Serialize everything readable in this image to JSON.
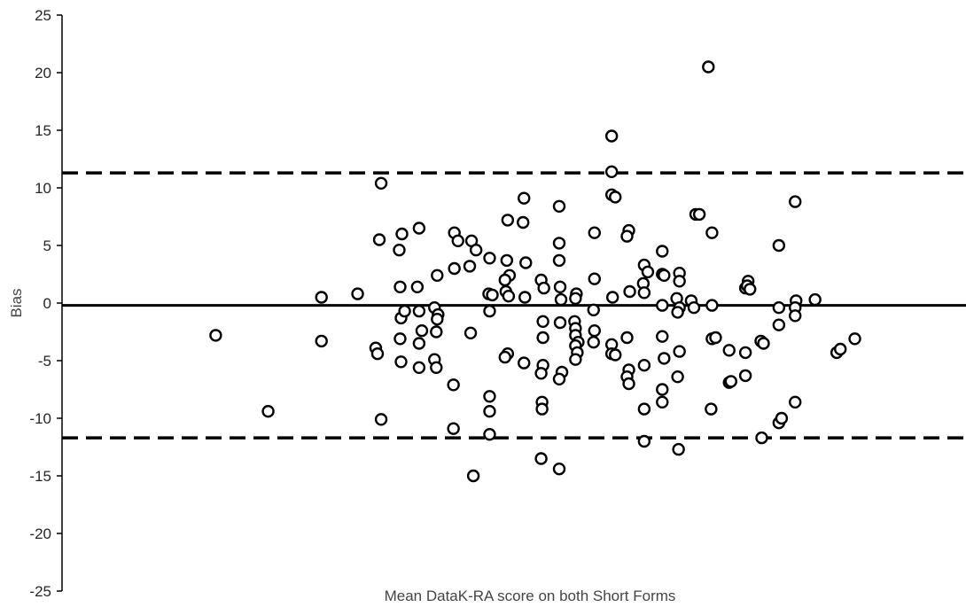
{
  "chart_data": {
    "type": "scatter",
    "title": "",
    "xlabel": "Mean DataK-RA score on both Short Forms",
    "ylabel": "Bias",
    "ylim": [
      -25,
      25
    ],
    "yticks": [
      25,
      20,
      15,
      10,
      5,
      0,
      -5,
      -10,
      -15,
      -20,
      -25
    ],
    "xlim": [
      0,
      100
    ],
    "x_tick_labels_shown": false,
    "grid": false,
    "legend": "none",
    "reference_lines": [
      {
        "name": "mean bias",
        "y": -0.2,
        "style": "solid"
      },
      {
        "name": "upper limit of agreement",
        "y": 11.3,
        "style": "dashed"
      },
      {
        "name": "lower limit of agreement",
        "y": -11.7,
        "style": "dashed"
      }
    ],
    "points": [
      [
        17.0,
        -2.8
      ],
      [
        22.8,
        -9.4
      ],
      [
        28.7,
        0.5
      ],
      [
        28.7,
        -3.3
      ],
      [
        32.7,
        0.8
      ],
      [
        35.3,
        10.4
      ],
      [
        35.1,
        5.5
      ],
      [
        34.7,
        -3.9
      ],
      [
        34.9,
        -4.4
      ],
      [
        35.3,
        -10.1
      ],
      [
        37.6,
        6.0
      ],
      [
        37.3,
        4.6
      ],
      [
        37.4,
        1.4
      ],
      [
        37.5,
        -1.3
      ],
      [
        37.9,
        -0.7
      ],
      [
        37.4,
        -3.1
      ],
      [
        37.5,
        -5.1
      ],
      [
        39.5,
        6.5
      ],
      [
        39.3,
        1.4
      ],
      [
        39.5,
        -0.7
      ],
      [
        39.8,
        -2.4
      ],
      [
        39.5,
        -3.5
      ],
      [
        39.5,
        -5.6
      ],
      [
        41.5,
        2.4
      ],
      [
        41.2,
        -0.4
      ],
      [
        41.6,
        -1.0
      ],
      [
        41.5,
        -1.4
      ],
      [
        41.4,
        -2.5
      ],
      [
        41.2,
        -4.9
      ],
      [
        41.4,
        -5.6
      ],
      [
        43.4,
        6.1
      ],
      [
        43.8,
        5.4
      ],
      [
        43.4,
        3.0
      ],
      [
        43.3,
        -7.1
      ],
      [
        43.3,
        -10.9
      ],
      [
        45.3,
        5.4
      ],
      [
        45.8,
        4.6
      ],
      [
        45.1,
        3.2
      ],
      [
        45.2,
        -2.6
      ],
      [
        45.5,
        -15.0
      ],
      [
        47.3,
        3.9
      ],
      [
        47.2,
        0.8
      ],
      [
        47.6,
        0.7
      ],
      [
        47.3,
        -0.7
      ],
      [
        47.3,
        -8.1
      ],
      [
        47.3,
        -9.4
      ],
      [
        47.3,
        -11.4
      ],
      [
        49.3,
        7.2
      ],
      [
        49.2,
        3.7
      ],
      [
        49.5,
        2.4
      ],
      [
        49.0,
        2.0
      ],
      [
        49.1,
        1.0
      ],
      [
        49.4,
        0.6
      ],
      [
        49.3,
        -4.4
      ],
      [
        49.0,
        -4.7
      ],
      [
        51.1,
        9.1
      ],
      [
        51.0,
        7.0
      ],
      [
        51.3,
        3.5
      ],
      [
        51.2,
        0.5
      ],
      [
        51.1,
        -5.2
      ],
      [
        53.0,
        2.0
      ],
      [
        53.3,
        1.3
      ],
      [
        53.2,
        -1.6
      ],
      [
        53.2,
        -3.0
      ],
      [
        53.2,
        -5.4
      ],
      [
        53.0,
        -6.1
      ],
      [
        53.1,
        -8.6
      ],
      [
        53.1,
        -9.2
      ],
      [
        53.0,
        -13.5
      ],
      [
        55.0,
        8.4
      ],
      [
        55.0,
        5.2
      ],
      [
        55.0,
        3.7
      ],
      [
        55.1,
        1.4
      ],
      [
        55.2,
        0.3
      ],
      [
        55.1,
        -1.7
      ],
      [
        55.3,
        -6.0
      ],
      [
        55.0,
        -6.6
      ],
      [
        55.0,
        -14.4
      ],
      [
        56.9,
        0.8
      ],
      [
        56.8,
        0.4
      ],
      [
        56.7,
        -1.6
      ],
      [
        56.8,
        -2.2
      ],
      [
        56.8,
        -2.8
      ],
      [
        57.1,
        -3.4
      ],
      [
        56.8,
        -3.7
      ],
      [
        57.0,
        -4.3
      ],
      [
        56.8,
        -4.9
      ],
      [
        58.9,
        6.1
      ],
      [
        58.9,
        2.1
      ],
      [
        58.8,
        -0.6
      ],
      [
        58.9,
        -2.4
      ],
      [
        58.8,
        -3.4
      ],
      [
        60.8,
        14.5
      ],
      [
        60.8,
        11.4
      ],
      [
        60.8,
        9.4
      ],
      [
        61.2,
        9.2
      ],
      [
        60.9,
        0.5
      ],
      [
        60.8,
        -3.6
      ],
      [
        60.8,
        -4.4
      ],
      [
        61.2,
        -4.5
      ],
      [
        62.7,
        6.3
      ],
      [
        62.5,
        5.8
      ],
      [
        62.8,
        1.0
      ],
      [
        62.5,
        -3.0
      ],
      [
        62.7,
        -5.8
      ],
      [
        62.5,
        -6.4
      ],
      [
        62.7,
        -7.0
      ],
      [
        64.4,
        3.3
      ],
      [
        64.8,
        2.7
      ],
      [
        64.3,
        1.7
      ],
      [
        64.4,
        0.9
      ],
      [
        64.4,
        -5.4
      ],
      [
        64.4,
        -9.2
      ],
      [
        64.4,
        -12.0
      ],
      [
        66.4,
        4.5
      ],
      [
        66.4,
        2.5
      ],
      [
        66.6,
        2.4
      ],
      [
        66.4,
        -0.2
      ],
      [
        66.4,
        -2.9
      ],
      [
        66.6,
        -4.8
      ],
      [
        66.4,
        -7.5
      ],
      [
        66.4,
        -8.6
      ],
      [
        68.3,
        2.6
      ],
      [
        68.3,
        1.9
      ],
      [
        68.0,
        0.4
      ],
      [
        68.3,
        -0.4
      ],
      [
        68.1,
        -0.8
      ],
      [
        68.3,
        -4.2
      ],
      [
        68.1,
        -6.4
      ],
      [
        68.2,
        -12.7
      ],
      [
        70.1,
        7.7
      ],
      [
        70.5,
        7.7
      ],
      [
        69.6,
        0.2
      ],
      [
        69.9,
        -0.4
      ],
      [
        71.9,
        6.1
      ],
      [
        71.9,
        -0.2
      ],
      [
        71.9,
        -3.1
      ],
      [
        72.3,
        -3.0
      ],
      [
        71.8,
        -9.2
      ],
      [
        73.8,
        -4.1
      ],
      [
        73.8,
        -6.9
      ],
      [
        74.0,
        -6.8
      ],
      [
        75.6,
        1.3
      ],
      [
        75.9,
        1.9
      ],
      [
        75.8,
        1.5
      ],
      [
        76.1,
        1.2
      ],
      [
        75.6,
        -4.3
      ],
      [
        75.6,
        -6.3
      ],
      [
        77.4,
        -11.7
      ],
      [
        77.3,
        -3.3
      ],
      [
        77.6,
        -3.5
      ],
      [
        79.3,
        5.0
      ],
      [
        79.3,
        -0.4
      ],
      [
        79.3,
        -1.9
      ],
      [
        79.3,
        -10.4
      ],
      [
        79.6,
        -10.0
      ],
      [
        81.1,
        8.8
      ],
      [
        81.2,
        0.2
      ],
      [
        81.1,
        -0.4
      ],
      [
        81.1,
        -1.1
      ],
      [
        81.1,
        -8.6
      ],
      [
        83.3,
        0.3
      ],
      [
        85.7,
        -4.3
      ],
      [
        86.1,
        -4.0
      ],
      [
        87.7,
        -3.1
      ],
      [
        71.5,
        20.5
      ]
    ]
  }
}
